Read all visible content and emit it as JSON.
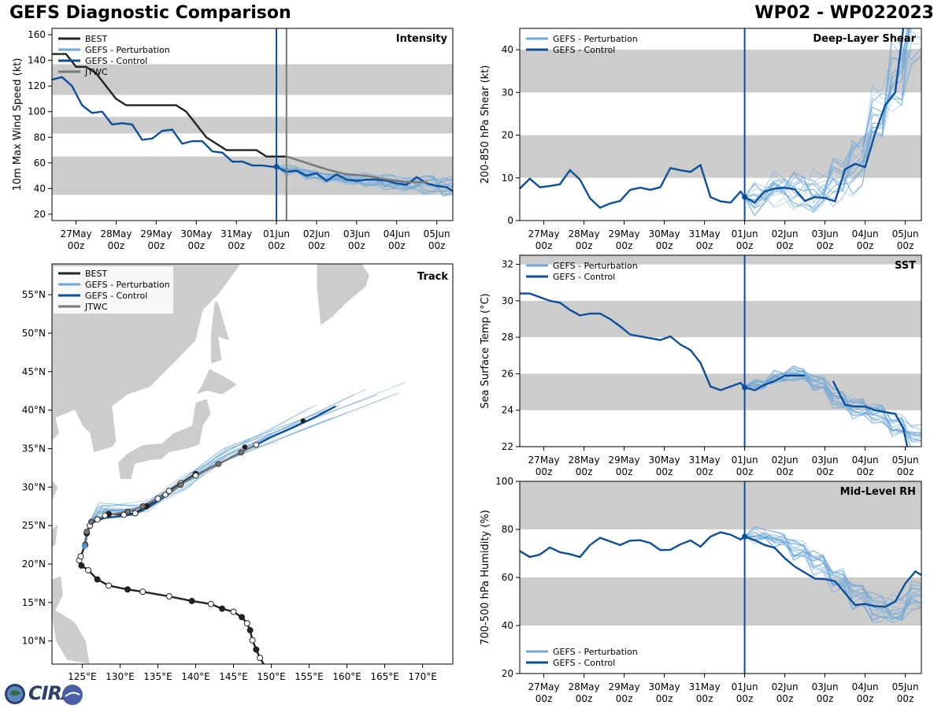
{
  "titles": {
    "left": "GEFS Diagnostic Comparison",
    "right": "WP02 - WP022023"
  },
  "colors": {
    "best": "#222222",
    "perturbation": "#6fa8d8",
    "control": "#0b4f9c",
    "jtwc": "#777777",
    "band": "#cccccc",
    "land": "#cccccc",
    "vline": "#0b4f9c"
  },
  "logo": {
    "text": "CIRA"
  },
  "time_ticks": [
    "27May\n00z",
    "28May\n00z",
    "29May\n00z",
    "30May\n00z",
    "31May\n00z",
    "01Jun\n00z",
    "02Jun\n00z",
    "03Jun\n00z",
    "04Jun\n00z",
    "05Jun\n00z"
  ],
  "chart_data": [
    {
      "id": "intensity",
      "type": "line",
      "title": "Intensity",
      "ylabel": "10m Max Wind Speed (kt)",
      "ylim": [
        15,
        165
      ],
      "xlim": [
        -0.6,
        9.4
      ],
      "yticks": [
        20,
        40,
        60,
        80,
        100,
        120,
        140,
        160
      ],
      "bands": [
        [
          35,
          65
        ],
        [
          83,
          96
        ],
        [
          113,
          137
        ]
      ],
      "vlines": [
        {
          "x": 5.0,
          "color": "control"
        },
        {
          "x": 5.25,
          "color": "jtwc"
        }
      ],
      "legend": [
        "BEST",
        "GEFS - Perturbation",
        "GEFS - Control",
        "JTWC"
      ],
      "series": [
        {
          "name": "BEST",
          "x": [
            -0.6,
            -0.25,
            0,
            0.25,
            0.5,
            0.75,
            1,
            1.25,
            1.5,
            1.75,
            2,
            2.25,
            2.5,
            2.75,
            3,
            3.25,
            3.5,
            3.75,
            4,
            4.25,
            4.5,
            4.75,
            5,
            5.25
          ],
          "y": [
            145,
            145,
            135,
            135,
            130,
            120,
            110,
            105,
            105,
            105,
            105,
            105,
            105,
            100,
            90,
            80,
            75,
            70,
            70,
            70,
            70,
            65,
            65,
            65
          ]
        },
        {
          "name": "GEFS - Control",
          "x": [
            -0.6,
            -0.35,
            -0.1,
            0.15,
            0.4,
            0.65,
            0.9,
            1.15,
            1.4,
            1.65,
            1.9,
            2.15,
            2.4,
            2.65,
            2.9,
            3.15,
            3.4,
            3.65,
            3.9,
            4.15,
            4.4,
            4.65,
            4.9,
            5.0,
            5.25,
            5.5,
            5.75,
            6.0,
            6.25,
            6.5,
            6.75,
            7.0,
            7.25,
            7.5,
            7.75,
            8.0,
            8.25,
            8.5,
            8.75,
            9.0,
            9.25,
            9.4
          ],
          "y": [
            125,
            127,
            120,
            105,
            99,
            100,
            90,
            91,
            90,
            78,
            79,
            85,
            86,
            75,
            77,
            77,
            69,
            68,
            61,
            61,
            58,
            58,
            57,
            57,
            53,
            54,
            50,
            52,
            46,
            51,
            47,
            46,
            47,
            47,
            46,
            44,
            43,
            49,
            44,
            42,
            41,
            38
          ]
        },
        {
          "name": "JTWC",
          "x": [
            5.25,
            5.75,
            6.25,
            6.75,
            7.25,
            7.75,
            8.25,
            8.75
          ],
          "y": [
            65,
            60,
            55,
            51,
            50,
            47,
            45,
            45
          ]
        }
      ],
      "pert_ensemble": true,
      "pert_start": 5.0,
      "pert_start_y": 57,
      "pert_center": [
        55,
        51,
        48,
        47,
        46,
        45,
        44,
        43,
        42
      ],
      "pert_spread": 6
    },
    {
      "id": "shear",
      "type": "line",
      "title": "Deep-Layer Shear",
      "ylabel": "200-850 hPa Shear (kt)",
      "ylim": [
        0,
        45
      ],
      "xlim": [
        -0.6,
        9.4
      ],
      "yticks": [
        0,
        10,
        20,
        30,
        40
      ],
      "bands": [
        [
          10,
          20
        ],
        [
          30,
          40
        ]
      ],
      "vlines": [
        {
          "x": 5.0,
          "color": "control"
        }
      ],
      "legend": [
        "GEFS - Perturbation",
        "GEFS - Control"
      ],
      "series": [
        {
          "name": "GEFS - Control",
          "x": [
            -0.6,
            -0.35,
            -0.1,
            0.15,
            0.4,
            0.65,
            0.9,
            1.15,
            1.4,
            1.65,
            1.9,
            2.15,
            2.4,
            2.65,
            2.9,
            3.15,
            3.4,
            3.65,
            3.9,
            4.15,
            4.4,
            4.65,
            4.9,
            5.0,
            5.25,
            5.5,
            5.75,
            6.0,
            6.25,
            6.5,
            6.75,
            7.0,
            7.25,
            7.5,
            7.75,
            8.0,
            8.25,
            8.5,
            8.75,
            8.95
          ],
          "y": [
            7.5,
            9.8,
            7.8,
            8.1,
            8.5,
            11.8,
            9.6,
            5.2,
            3.0,
            4.0,
            4.6,
            7.2,
            7.7,
            7.2,
            7.8,
            12.3,
            11.8,
            11.4,
            13.0,
            5.5,
            4.5,
            4.2,
            6.8,
            5.5,
            4.2,
            6.8,
            7.5,
            7.7,
            7.3,
            4.6,
            5.5,
            5.3,
            4.5,
            12.0,
            13.3,
            12.5,
            20.5,
            27.0,
            30.0,
            45.0
          ]
        }
      ],
      "pert_ensemble": true,
      "pert_start": 5.0,
      "pert_start_y": 5.5,
      "pert_center": [
        6,
        7,
        7,
        8,
        9,
        14,
        25,
        34,
        44
      ],
      "pert_spread": 6
    },
    {
      "id": "sst",
      "type": "line",
      "title": "SST",
      "ylabel": "Sea Surface Temp (°C)",
      "ylim": [
        22,
        32.5
      ],
      "xlim": [
        -0.6,
        9.4
      ],
      "yticks": [
        22,
        24,
        26,
        28,
        30,
        32
      ],
      "bands": [
        [
          24,
          26
        ],
        [
          28,
          30
        ],
        [
          32,
          32.5
        ]
      ],
      "vlines": [
        {
          "x": 5.0,
          "color": "control"
        }
      ],
      "legend": [
        "GEFS - Perturbation",
        "GEFS - Control"
      ],
      "series": [
        {
          "name": "GEFS - Control",
          "x": [
            -0.6,
            -0.35,
            -0.1,
            0.15,
            0.4,
            0.65,
            0.9,
            1.15,
            1.4,
            1.65,
            1.9,
            2.15,
            2.4,
            2.65,
            2.9,
            3.15,
            3.4,
            3.65,
            3.9,
            4.15,
            4.4,
            4.65,
            4.9,
            5.0,
            5.25,
            5.5,
            5.75,
            6.0,
            6.25,
            6.5
          ],
          "y": [
            30.4,
            30.4,
            30.2,
            30.0,
            29.9,
            29.5,
            29.2,
            29.3,
            29.3,
            29.0,
            28.6,
            28.15,
            28.05,
            27.95,
            27.85,
            28.05,
            27.6,
            27.3,
            26.6,
            25.3,
            25.1,
            25.3,
            25.5,
            25.25,
            25.1,
            25.4,
            25.6,
            25.9,
            25.9,
            25.9
          ]
        },
        {
          "name": "GEFS - Control (segment)",
          "x": [
            7.2,
            7.5,
            7.75,
            8.0,
            8.25,
            8.5,
            8.75,
            8.95,
            9.05
          ],
          "y": [
            25.6,
            24.3,
            24.2,
            24.2,
            24.0,
            23.9,
            23.8,
            23.0,
            22.0
          ]
        }
      ],
      "pert_ensemble": true,
      "pert_start": 5.0,
      "pert_start_y": 25.3,
      "pert_center": [
        25.4,
        25.8,
        26.0,
        25.5,
        24.6,
        24.2,
        23.8,
        23.3,
        22.6
      ],
      "pert_spread": 0.5
    },
    {
      "id": "rh",
      "type": "line",
      "title": "Mid-Level RH",
      "ylabel": "700-500 hPa Humidity (%)",
      "ylim": [
        20,
        100
      ],
      "xlim": [
        -0.6,
        9.4
      ],
      "yticks": [
        20,
        40,
        60,
        80,
        100
      ],
      "bands": [
        [
          40,
          60
        ],
        [
          80,
          100
        ]
      ],
      "vlines": [
        {
          "x": 5.0,
          "color": "control"
        }
      ],
      "legend": [
        "GEFS - Perturbation",
        "GEFS - Control"
      ],
      "series": [
        {
          "name": "GEFS - Control",
          "x": [
            -0.6,
            -0.35,
            -0.1,
            0.15,
            0.4,
            0.65,
            0.9,
            1.15,
            1.4,
            1.65,
            1.9,
            2.15,
            2.4,
            2.65,
            2.9,
            3.15,
            3.4,
            3.65,
            3.9,
            4.15,
            4.4,
            4.65,
            4.9,
            5.0,
            5.25,
            5.5,
            5.75,
            6.0,
            6.25,
            6.5,
            6.75,
            7.0,
            7.25,
            7.5,
            7.75,
            8.0,
            8.25,
            8.5,
            8.75,
            9.0,
            9.25,
            9.4
          ],
          "y": [
            71,
            68.5,
            69.5,
            72.5,
            70.5,
            69.7,
            68.5,
            73.5,
            76.5,
            75,
            73.5,
            75.3,
            75.5,
            74.3,
            71.4,
            71.5,
            73.8,
            75.4,
            72.8,
            77,
            78.8,
            77.8,
            75.8,
            77,
            75.5,
            73.5,
            72.3,
            68,
            64.5,
            62,
            59.5,
            59.3,
            58.4,
            53.5,
            48.5,
            49,
            48,
            47.8,
            50,
            57.5,
            62.5,
            61
          ]
        }
      ],
      "pert_ensemble": true,
      "pert_start": 5.0,
      "pert_start_y": 77,
      "pert_center": [
        78,
        76,
        72,
        66,
        60,
        52,
        47,
        48,
        52
      ],
      "pert_spread": 5
    },
    {
      "id": "track",
      "type": "scatter",
      "title": "Track",
      "xlabel": "",
      "ylabel": "",
      "lon_range": [
        121,
        174
      ],
      "lat_range": [
        7,
        59
      ],
      "xticks": [
        125,
        130,
        135,
        140,
        145,
        150,
        155,
        160,
        165,
        170
      ],
      "yticks": [
        10,
        15,
        20,
        25,
        30,
        35,
        40,
        45,
        50,
        55
      ],
      "xtick_labels": [
        "125°E",
        "130°E",
        "135°E",
        "140°E",
        "145°E",
        "150°E",
        "155°E",
        "160°E",
        "165°E",
        "170°E"
      ],
      "ytick_labels": [
        "10°N",
        "15°N",
        "20°N",
        "25°N",
        "30°N",
        "35°N",
        "40°N",
        "45°N",
        "50°N",
        "55°N"
      ],
      "legend": [
        "BEST",
        "GEFS - Perturbation",
        "GEFS - Control",
        "JTWC"
      ],
      "best_track": [
        [
          149.3,
          6.5
        ],
        [
          148.5,
          7.8
        ],
        [
          148.0,
          8.9
        ],
        [
          147.5,
          10.1
        ],
        [
          147.2,
          11.4
        ],
        [
          146.8,
          12.3
        ],
        [
          146.1,
          13.1
        ],
        [
          145.0,
          13.8
        ],
        [
          143.5,
          14.2
        ],
        [
          142.0,
          14.8
        ],
        [
          139.5,
          15.2
        ],
        [
          136.5,
          15.8
        ],
        [
          133.0,
          16.4
        ],
        [
          131.0,
          16.7
        ],
        [
          128.5,
          17.2
        ],
        [
          127.0,
          18.0
        ],
        [
          125.8,
          19.2
        ],
        [
          124.9,
          19.8
        ],
        [
          124.6,
          20.5
        ],
        [
          124.8,
          21.0
        ],
        [
          125.4,
          22.5
        ],
        [
          125.6,
          24.0
        ],
        [
          126.0,
          25.0
        ],
        [
          127.0,
          25.8
        ],
        [
          128.5,
          26.5
        ],
        [
          130.5,
          26.4
        ],
        [
          132.0,
          26.6
        ],
        [
          133.5,
          27.5
        ],
        [
          135.0,
          28.5
        ],
        [
          136.5,
          29.5
        ],
        [
          138.0,
          30.5
        ],
        [
          140.0,
          31.7
        ]
      ],
      "best_filled": [
        0,
        2,
        4,
        6,
        8,
        10,
        13,
        15,
        17,
        21,
        24,
        27,
        31
      ],
      "control_track": [
        [
          125.3,
          22.3
        ],
        [
          125.5,
          23.5
        ],
        [
          125.8,
          24.5
        ],
        [
          126.5,
          25.5
        ],
        [
          128.0,
          26.0
        ],
        [
          130.0,
          26.2
        ],
        [
          132.0,
          26.5
        ],
        [
          134.0,
          27.5
        ],
        [
          136.5,
          29.2
        ],
        [
          139.0,
          31.0
        ],
        [
          141.5,
          32.3
        ],
        [
          144.0,
          33.5
        ],
        [
          147.0,
          35.0
        ],
        [
          150.0,
          36.5
        ],
        [
          153.0,
          37.8
        ],
        [
          156.0,
          39.2
        ],
        [
          158.5,
          40.5
        ]
      ],
      "jtwc_track": [
        [
          125.4,
          22.5
        ],
        [
          125.6,
          24.2
        ],
        [
          126.2,
          25.5
        ],
        [
          128.0,
          26.3
        ],
        [
          131.0,
          26.8
        ],
        [
          133.0,
          27.5
        ],
        [
          136.0,
          29.0
        ],
        [
          138.0,
          30.3
        ],
        [
          140.0,
          31.5
        ],
        [
          143.0,
          33.0
        ],
        [
          146.0,
          34.5
        ],
        [
          148.0,
          35.5
        ]
      ],
      "jtwc_hollow": [
        3,
        6,
        8,
        11
      ],
      "control_markers": [
        [
          146.5,
          35.2
        ],
        [
          154.2,
          38.6
        ]
      ],
      "pert_end_lons": [
        166.8,
        167.8,
        162.5,
        158.0,
        164.0,
        161.0,
        159.0,
        157.0,
        152.5,
        155.0,
        150.0,
        148.0,
        151.0,
        160.0,
        156.0
      ]
    }
  ]
}
